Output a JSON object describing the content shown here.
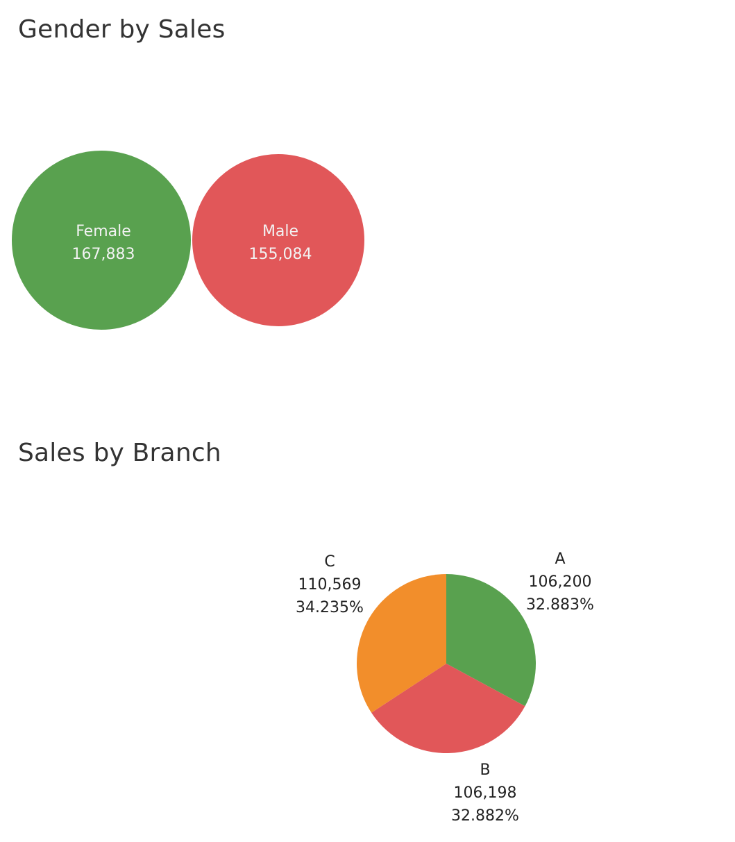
{
  "chart_data": [
    {
      "type": "bubble",
      "title": "Gender by Sales",
      "categories": [
        "Female",
        "Male"
      ],
      "values": [
        167883,
        155084
      ],
      "value_labels": [
        "167,883",
        "155,084"
      ],
      "colors": [
        "#59a14f",
        "#e15759"
      ]
    },
    {
      "type": "pie",
      "title": "Sales by Branch",
      "categories": [
        "A",
        "B",
        "C"
      ],
      "values": [
        106200,
        106198,
        110569
      ],
      "value_labels": [
        "106,200",
        "106,198",
        "110,569"
      ],
      "percent_labels": [
        "32.883%",
        "32.882%",
        "34.235%"
      ],
      "colors": [
        "#59a14f",
        "#e15759",
        "#f28e2b"
      ]
    }
  ]
}
